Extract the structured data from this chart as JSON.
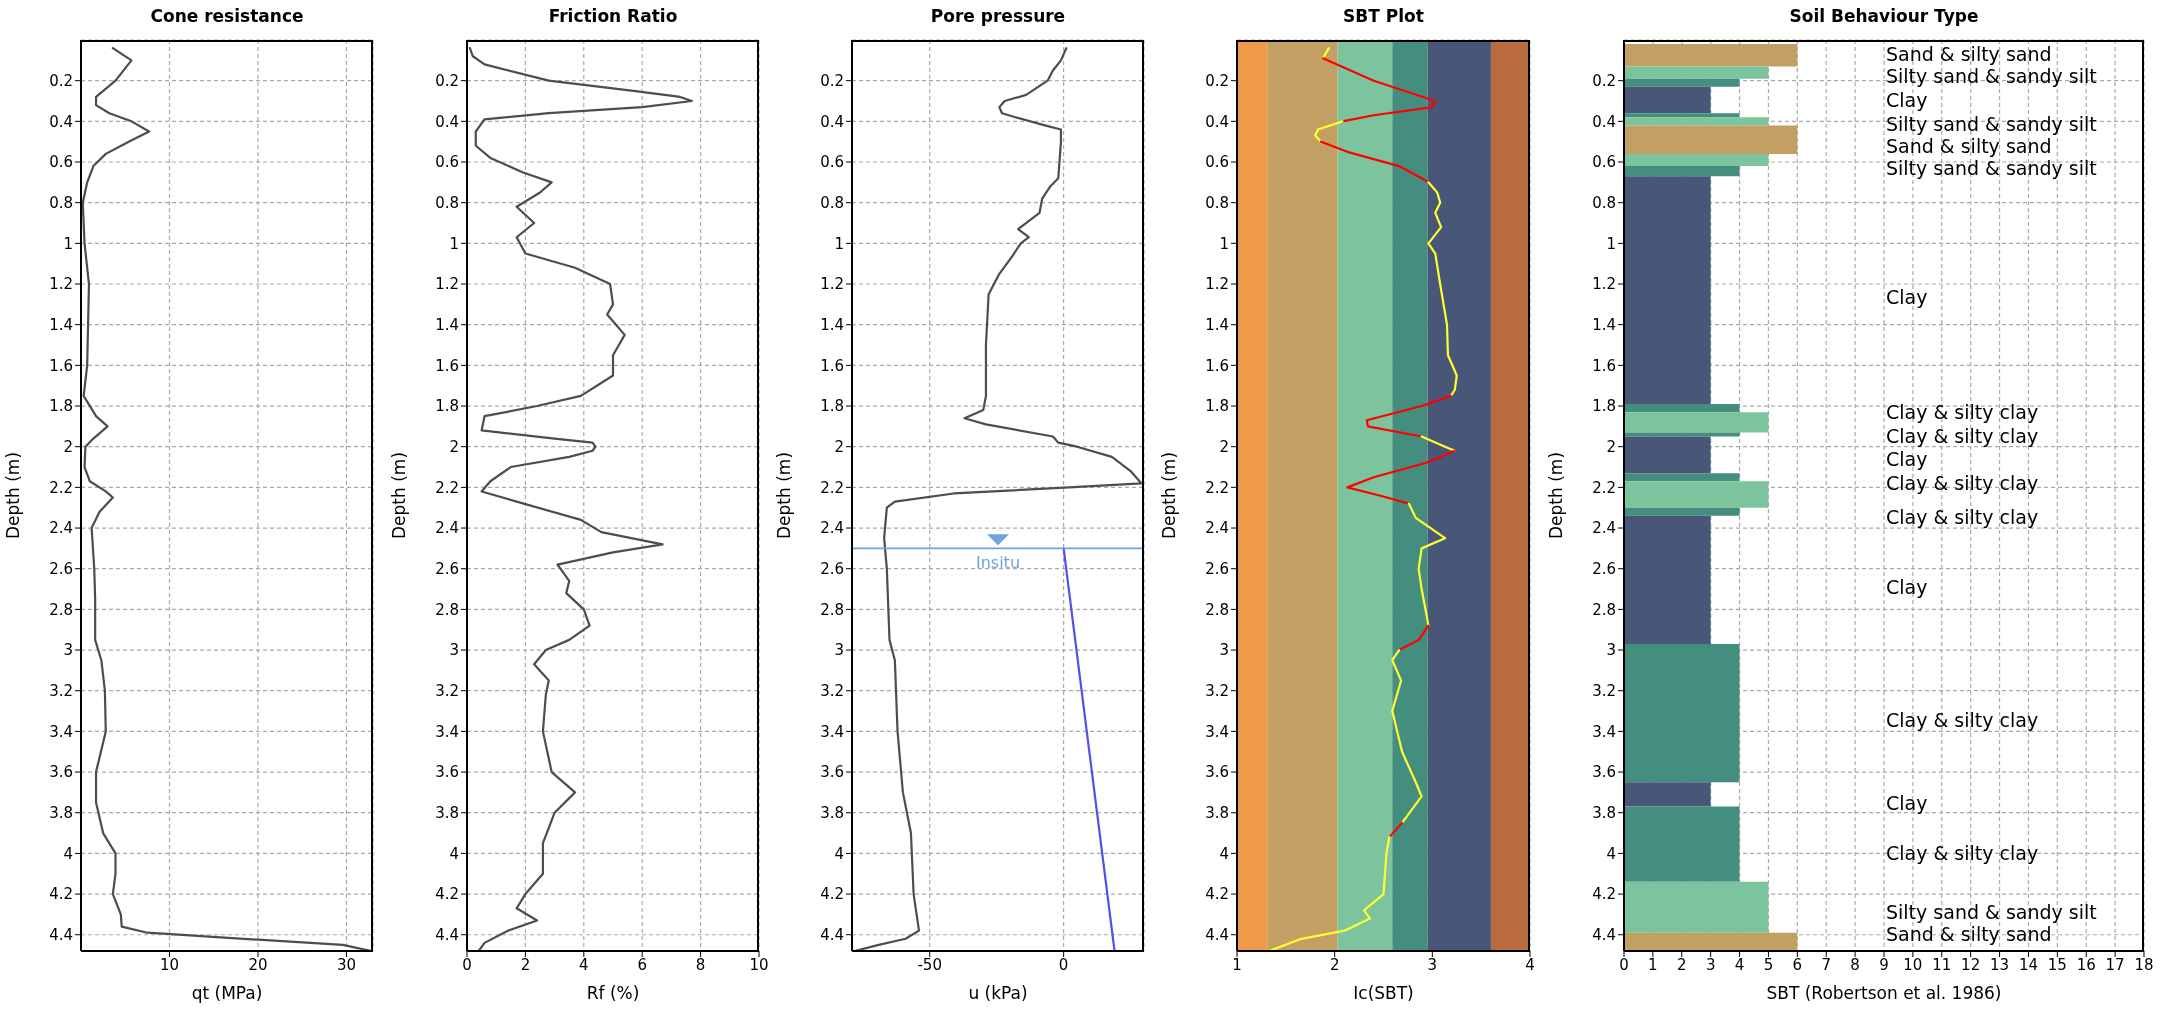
{
  "chart_data": [
    {
      "type": "line",
      "title": "Cone resistance",
      "xlabel": "qt (MPa)",
      "ylabel": "Depth (m)",
      "xlim": [
        0,
        33
      ],
      "xticks": [
        10,
        20,
        30
      ],
      "ylim": [
        4.48,
        0
      ],
      "yticks": [
        0.2,
        0.4,
        0.6,
        0.8,
        1,
        1.2,
        1.4,
        1.6,
        1.8,
        2,
        2.2,
        2.4,
        2.6,
        2.8,
        3,
        3.2,
        3.4,
        3.6,
        3.8,
        4,
        4.2,
        4.4
      ],
      "grid": true,
      "series": [
        {
          "color": "#4d4d4d",
          "x": [
            3.6,
            5.7,
            3.9,
            1.7,
            1.7,
            3.2,
            5.7,
            7.7,
            5.4,
            2.8,
            1.4,
            0.7,
            0.2,
            0.4,
            0.9,
            0.7,
            0.3,
            1.7,
            3.0,
            1.4,
            0.5,
            0.4,
            1.0,
            2.8,
            3.6,
            2.1,
            1.2,
            1.5,
            1.6,
            1.6,
            2.3,
            2.7,
            2.8,
            1.7,
            1.7,
            2.5,
            3.9,
            3.9,
            3.6,
            4.5,
            4.6,
            7.5,
            18.4,
            29.6,
            32.8
          ],
          "values": [
            0.04,
            0.1,
            0.2,
            0.28,
            0.32,
            0.36,
            0.4,
            0.45,
            0.5,
            0.56,
            0.62,
            0.7,
            0.8,
            1.0,
            1.2,
            1.6,
            1.75,
            1.85,
            1.9,
            1.96,
            2.0,
            2.1,
            2.17,
            2.22,
            2.25,
            2.32,
            2.4,
            2.6,
            2.75,
            2.95,
            3.05,
            3.2,
            3.4,
            3.6,
            3.75,
            3.9,
            4.0,
            4.1,
            4.2,
            4.3,
            4.36,
            4.39,
            4.42,
            4.45,
            4.48
          ]
        }
      ]
    },
    {
      "type": "line",
      "title": "Friction Ratio",
      "xlabel": "Rf (%)",
      "ylabel": "Depth (m)",
      "xlim": [
        0,
        10
      ],
      "xticks": [
        0,
        2,
        4,
        6,
        8,
        10
      ],
      "ylim": [
        4.48,
        0
      ],
      "yticks": [
        0.2,
        0.4,
        0.6,
        0.8,
        1,
        1.2,
        1.4,
        1.6,
        1.8,
        2,
        2.2,
        2.4,
        2.6,
        2.8,
        3,
        3.2,
        3.4,
        3.6,
        3.8,
        4,
        4.2,
        4.4
      ],
      "grid": true,
      "series": [
        {
          "color": "#4d4d4d",
          "x": [
            0.1,
            0.2,
            0.6,
            2.8,
            5.7,
            7.3,
            7.7,
            6.0,
            2.8,
            0.6,
            0.3,
            0.3,
            0.8,
            1.9,
            2.9,
            2.5,
            1.7,
            2.3,
            1.7,
            2.0,
            3.7,
            4.9,
            5.0,
            4.8,
            5.4,
            5.0,
            5.0,
            3.9,
            2.4,
            0.6,
            0.5,
            3.0,
            4.3,
            4.4,
            4.3,
            3.5,
            1.5,
            0.8,
            0.5,
            1.7,
            3.9,
            4.6,
            6.7,
            5.0,
            3.1,
            3.5,
            3.4,
            4.0,
            4.2,
            3.5,
            2.7,
            2.3,
            2.8,
            2.7,
            2.6,
            2.9,
            3.7,
            3.0,
            2.6,
            2.6,
            2.0,
            1.7,
            2.4,
            1.4,
            0.6,
            0.4
          ],
          "values": [
            0.04,
            0.08,
            0.12,
            0.2,
            0.25,
            0.28,
            0.3,
            0.33,
            0.36,
            0.39,
            0.45,
            0.52,
            0.58,
            0.65,
            0.7,
            0.75,
            0.82,
            0.9,
            0.97,
            1.05,
            1.12,
            1.2,
            1.3,
            1.35,
            1.45,
            1.55,
            1.65,
            1.75,
            1.8,
            1.85,
            1.92,
            1.96,
            1.98,
            2.0,
            2.02,
            2.05,
            2.1,
            2.17,
            2.22,
            2.27,
            2.36,
            2.42,
            2.48,
            2.52,
            2.58,
            2.66,
            2.72,
            2.8,
            2.88,
            2.95,
            3.0,
            3.07,
            3.15,
            3.22,
            3.4,
            3.6,
            3.7,
            3.8,
            3.95,
            4.1,
            4.2,
            4.27,
            4.33,
            4.38,
            4.44,
            4.48
          ]
        }
      ]
    },
    {
      "type": "line",
      "title": "Pore pressure",
      "xlabel": "u (kPa)",
      "ylabel": "Depth (m)",
      "xlim": [
        -79,
        30
      ],
      "xticks": [
        -50,
        0
      ],
      "ylim": [
        4.48,
        0
      ],
      "yticks": [
        0.2,
        0.4,
        0.6,
        0.8,
        1,
        1.2,
        1.4,
        1.6,
        1.8,
        2,
        2.2,
        2.4,
        2.6,
        2.8,
        3,
        3.2,
        3.4,
        3.6,
        3.8,
        4,
        4.2,
        4.4
      ],
      "grid": true,
      "series": [
        {
          "color": "#4d4d4d",
          "x": [
            1,
            -1,
            -4,
            -6,
            -14,
            -22,
            -24,
            -23,
            -18,
            -7,
            -1,
            -1,
            -2,
            -5,
            -8,
            -9,
            -17,
            -13,
            -16,
            -19,
            -24,
            -28,
            -29,
            -29,
            -30,
            -37,
            -29,
            -4,
            -2,
            5,
            18,
            25,
            29,
            2,
            -41,
            -63,
            -66,
            -67,
            -66,
            -65,
            -63,
            -62,
            -60,
            -57,
            -56,
            -54,
            -59,
            -69,
            -78
          ],
          "values": [
            0.04,
            0.1,
            0.15,
            0.2,
            0.27,
            0.3,
            0.33,
            0.36,
            0.38,
            0.42,
            0.44,
            0.5,
            0.68,
            0.72,
            0.78,
            0.85,
            0.93,
            0.97,
            1.0,
            1.06,
            1.15,
            1.25,
            1.5,
            1.75,
            1.82,
            1.86,
            1.89,
            1.95,
            1.98,
            2.0,
            2.05,
            2.12,
            2.18,
            2.2,
            2.23,
            2.27,
            2.3,
            2.45,
            2.6,
            2.95,
            3.05,
            3.4,
            3.7,
            3.9,
            4.2,
            4.38,
            4.42,
            4.45,
            4.48
          ]
        },
        {
          "color": "#5050f0",
          "x": [
            0,
            19
          ],
          "values": [
            2.5,
            4.48
          ]
        }
      ],
      "ref_lines": [
        {
          "axis": "y",
          "value": 2.5,
          "label": "Insitu",
          "color": "#6fa3dc"
        }
      ]
    },
    {
      "type": "line",
      "title": "SBT Plot",
      "xlabel": "Ic(SBT)",
      "ylabel": "Depth (m)",
      "xlim": [
        1,
        4
      ],
      "xticks": [
        1,
        2,
        3,
        4
      ],
      "ylim": [
        4.48,
        0
      ],
      "yticks": [
        0.2,
        0.4,
        0.6,
        0.8,
        1,
        1.2,
        1.4,
        1.6,
        1.8,
        2,
        2.2,
        2.4,
        2.6,
        2.8,
        3,
        3.2,
        3.4,
        3.6,
        3.8,
        4,
        4.2,
        4.4
      ],
      "grid": true,
      "bands": [
        {
          "axis": "x",
          "from": 1,
          "to": 1.31,
          "color": "#ef9a4b"
        },
        {
          "axis": "x",
          "from": 1.31,
          "to": 2.03,
          "color": "#c2a063"
        },
        {
          "axis": "x",
          "from": 2.03,
          "to": 2.59,
          "color": "#7cc49d"
        },
        {
          "axis": "x",
          "from": 2.59,
          "to": 2.95,
          "color": "#448e80"
        },
        {
          "axis": "x",
          "from": 2.95,
          "to": 3.6,
          "color": "#485677"
        },
        {
          "axis": "x",
          "from": 3.6,
          "to": 4,
          "color": "#b86a40"
        }
      ],
      "series": [
        {
          "color": "#ffff33",
          "x": [
            1.94,
            1.88
          ],
          "values": [
            0.04,
            0.09
          ]
        },
        {
          "color": "#ff0000",
          "x": [
            1.88,
            2.4,
            3.03,
            3.0,
            2.4,
            2.08
          ],
          "values": [
            0.09,
            0.2,
            0.3,
            0.33,
            0.37,
            0.4
          ]
        },
        {
          "color": "#ffff33",
          "x": [
            2.08,
            1.83,
            1.8,
            1.86
          ],
          "values": [
            0.4,
            0.44,
            0.47,
            0.5
          ]
        },
        {
          "color": "#ff0000",
          "x": [
            1.86,
            2.13,
            2.66,
            2.89,
            2.96
          ],
          "values": [
            0.5,
            0.55,
            0.62,
            0.68,
            0.7
          ]
        },
        {
          "color": "#ffff33",
          "x": [
            2.96,
            3.05,
            3.08,
            3.03,
            3.09,
            2.96,
            3.03,
            3.08,
            3.15,
            3.16,
            3.25,
            3.23,
            3.19
          ],
          "values": [
            0.7,
            0.75,
            0.8,
            0.85,
            0.92,
            1.0,
            1.05,
            1.2,
            1.4,
            1.55,
            1.65,
            1.72,
            1.75
          ]
        },
        {
          "color": "#ff0000",
          "x": [
            3.19,
            2.89,
            2.33,
            2.34,
            2.89
          ],
          "values": [
            1.75,
            1.8,
            1.87,
            1.9,
            1.95
          ]
        },
        {
          "color": "#ffff33",
          "x": [
            2.89,
            3.13,
            3.23
          ],
          "values": [
            1.95,
            2.0,
            2.02
          ]
        },
        {
          "color": "#ff0000",
          "x": [
            3.23,
            2.93,
            2.4,
            2.13,
            2.46,
            2.76
          ],
          "values": [
            2.02,
            2.08,
            2.15,
            2.2,
            2.24,
            2.28
          ]
        },
        {
          "color": "#ffff33",
          "x": [
            2.76,
            2.83,
            3.13,
            2.89,
            2.86,
            2.89,
            2.93,
            2.96
          ],
          "values": [
            2.28,
            2.35,
            2.45,
            2.5,
            2.6,
            2.7,
            2.8,
            2.88
          ]
        },
        {
          "color": "#ff0000",
          "x": [
            2.96,
            2.86,
            2.66
          ],
          "values": [
            2.88,
            2.95,
            3.0
          ]
        },
        {
          "color": "#ffff33",
          "x": [
            2.66,
            2.59,
            2.68,
            2.59,
            2.69,
            2.83,
            2.89,
            2.69
          ],
          "values": [
            3.0,
            3.05,
            3.15,
            3.3,
            3.5,
            3.65,
            3.72,
            3.85
          ]
        },
        {
          "color": "#ff0000",
          "x": [
            2.69,
            2.56
          ],
          "values": [
            3.85,
            3.92
          ]
        },
        {
          "color": "#ffff33",
          "x": [
            2.56,
            2.53,
            2.5,
            2.3,
            2.36,
            2.1,
            1.66,
            1.33
          ],
          "values": [
            3.92,
            4.0,
            4.2,
            4.28,
            4.32,
            4.38,
            4.42,
            4.48
          ]
        }
      ]
    },
    {
      "type": "histogram",
      "orientation": "horizontal",
      "title": "Soil Behaviour Type",
      "xlabel": "SBT (Robertson et al. 1986)",
      "ylabel": "Depth (m)",
      "xlim": [
        0,
        18
      ],
      "xticks": [
        0,
        1,
        2,
        3,
        4,
        5,
        6,
        7,
        8,
        9,
        10,
        11,
        12,
        13,
        14,
        15,
        16,
        17,
        18
      ],
      "ylim": [
        4.48,
        0
      ],
      "yticks": [
        0.2,
        0.4,
        0.6,
        0.8,
        1,
        1.2,
        1.4,
        1.6,
        1.8,
        2,
        2.2,
        2.4,
        2.6,
        2.8,
        3,
        3.2,
        3.4,
        3.6,
        3.8,
        4,
        4.2,
        4.4
      ],
      "grid": true,
      "bins": [
        0.02,
        0.13,
        0.19,
        0.23,
        0.36,
        0.38,
        0.42,
        0.56,
        0.62,
        0.67,
        1.79,
        1.83,
        1.93,
        1.95,
        2.13,
        2.17,
        2.3,
        2.34,
        2.97,
        3.65,
        3.77,
        4.14,
        4.39,
        4.48
      ],
      "values": [
        6,
        5,
        4,
        3,
        4,
        5,
        6,
        5,
        4,
        3,
        4,
        5,
        4,
        3,
        4,
        5,
        4,
        3,
        4,
        3,
        4,
        5,
        6
      ],
      "colors": [
        "#c2a063",
        "#7cc49d",
        "#448e80",
        "#485677",
        "#448e80",
        "#7cc49d",
        "#c2a063",
        "#7cc49d",
        "#448e80",
        "#485677",
        "#448e80",
        "#7cc49d",
        "#448e80",
        "#485677",
        "#448e80",
        "#7cc49d",
        "#448e80",
        "#485677",
        "#448e80",
        "#485677",
        "#448e80",
        "#7cc49d",
        "#c2a063"
      ],
      "annotations": [
        "Sand & silty sand",
        "Silty sand & sandy silt",
        "Clay",
        "Silty sand & sandy silt",
        "Sand & silty sand",
        "Silty sand & sandy silt",
        "Clay",
        "Clay & silty clay",
        "Clay & silty clay",
        "Clay",
        "Clay & silty clay",
        "Clay & silty clay",
        "Clay",
        "Clay & silty clay",
        "Clay",
        "Clay & silty clay",
        "Silty sand & sandy silt",
        "Sand & silty sand"
      ]
    }
  ]
}
